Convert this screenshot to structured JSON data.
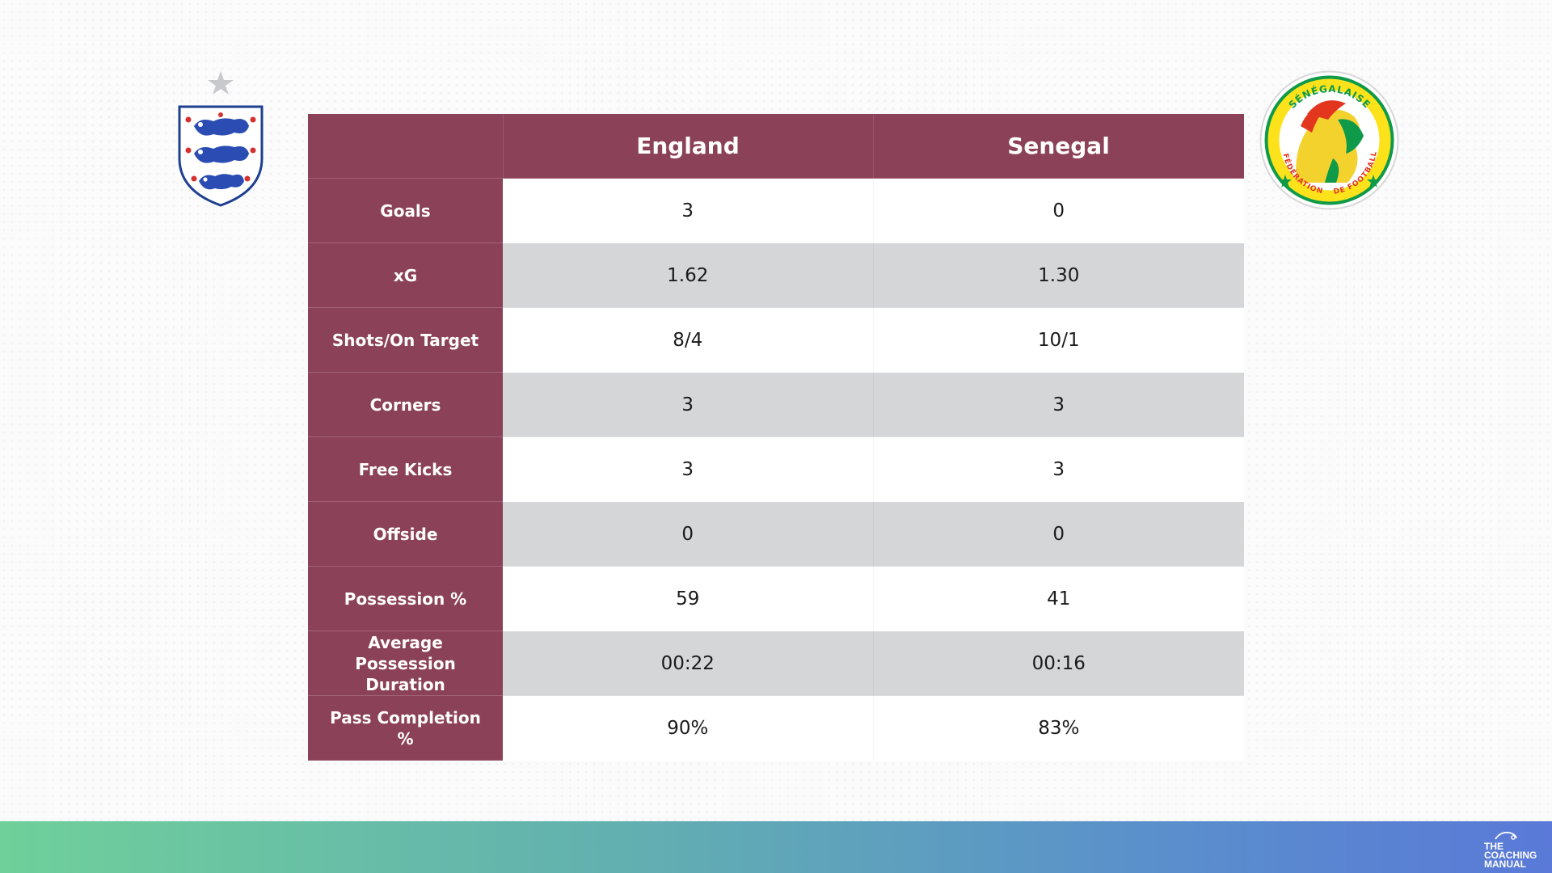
{
  "teams": {
    "home": "England",
    "away": "Senegal"
  },
  "crests": {
    "england_icon": "england-three-lions-crest",
    "senegal_icon": "senegal-federation-lion-crest",
    "senegal_ring_text_top": "SÉNÉGALAISE",
    "senegal_ring_text_left": "FÉDÉRATION",
    "senegal_ring_text_right": "DE FOOTBALL"
  },
  "table": {
    "header_blank": "",
    "rows": [
      {
        "label": "Goals",
        "england": "3",
        "senegal": "0"
      },
      {
        "label": "xG",
        "england": "1.62",
        "senegal": "1.30"
      },
      {
        "label": "Shots/On Target",
        "england": "8/4",
        "senegal": "10/1"
      },
      {
        "label": "Corners",
        "england": "3",
        "senegal": "3"
      },
      {
        "label": "Free Kicks",
        "england": "3",
        "senegal": "3"
      },
      {
        "label": "Offside",
        "england": "0",
        "senegal": "0"
      },
      {
        "label": "Possession %",
        "england": "59",
        "senegal": "41"
      },
      {
        "label": "Average Possession Duration",
        "england": "00:22",
        "senegal": "00:16"
      },
      {
        "label": "Pass Completion %",
        "england": "90%",
        "senegal": "83%"
      }
    ]
  },
  "footer": {
    "logo_text": "THE\nCOACHING\nMANUAL"
  },
  "colors": {
    "header_maroon": "#8b4157",
    "row_grey": "#d5d6d8",
    "row_white": "#ffffff",
    "footer_gradient_start": "#6fd09a",
    "footer_gradient_end": "#5a79d8"
  }
}
